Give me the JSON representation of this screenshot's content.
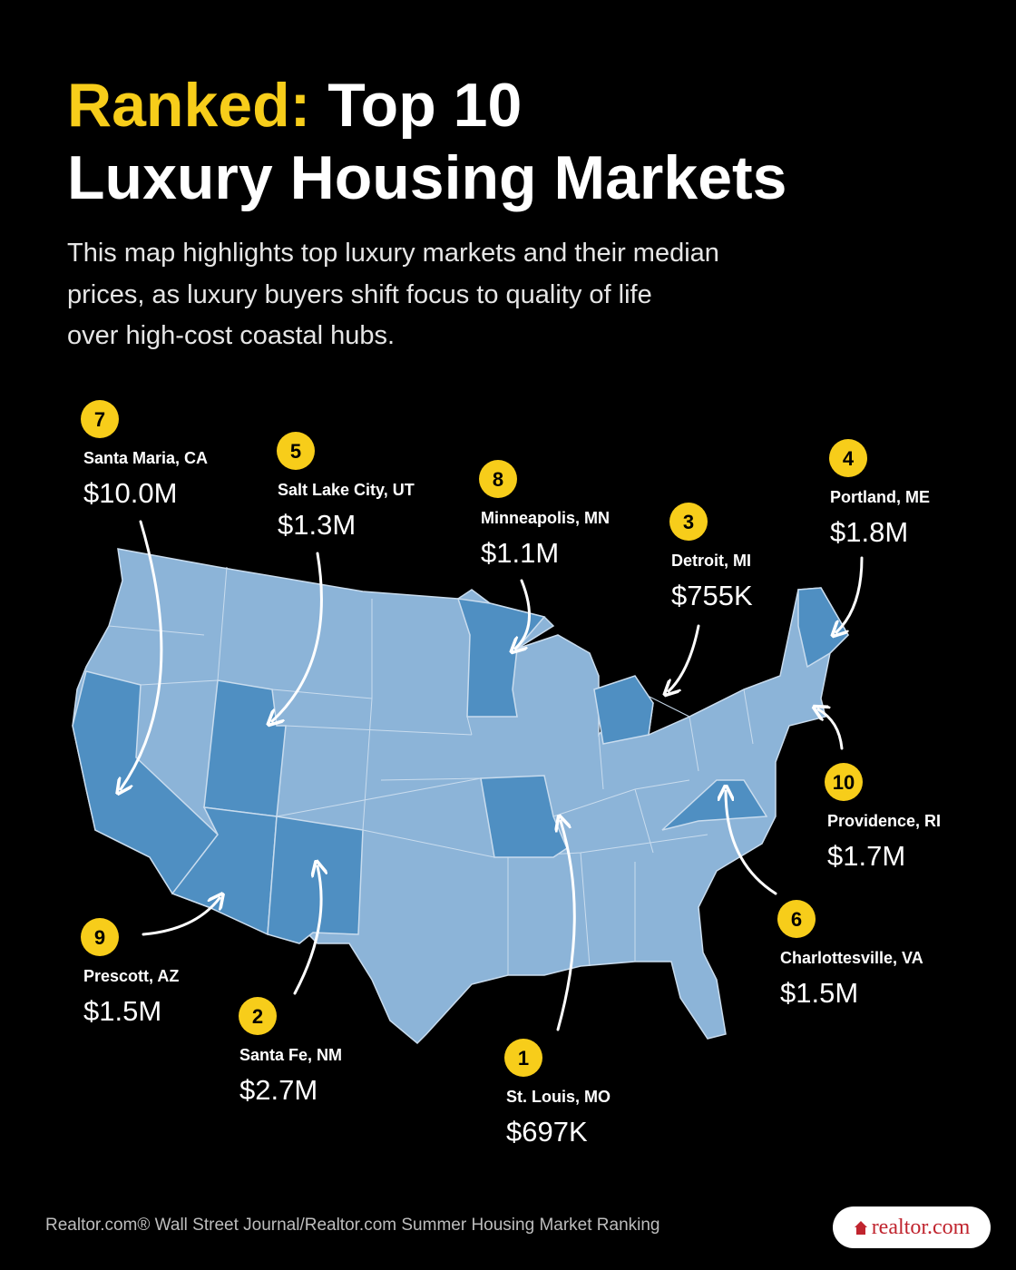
{
  "header": {
    "title_highlight": "Ranked:",
    "title_rest": "Top 10",
    "title_line2": "Luxury Housing Markets",
    "subtitle_lines": [
      "This map highlights top luxury markets and their median",
      "prices, as luxury buyers shift focus to quality of life",
      "over high-cost coastal hubs."
    ]
  },
  "markets": [
    {
      "rank": 1,
      "city": "St. Louis, MO",
      "price": "$697K"
    },
    {
      "rank": 2,
      "city": "Santa Fe, NM",
      "price": "$2.7M"
    },
    {
      "rank": 3,
      "city": "Detroit, MI",
      "price": "$755K"
    },
    {
      "rank": 4,
      "city": "Portland, ME",
      "price": "$1.8M"
    },
    {
      "rank": 5,
      "city": "Salt Lake City, UT",
      "price": "$1.3M"
    },
    {
      "rank": 6,
      "city": "Charlottesville, VA",
      "price": "$1.5M"
    },
    {
      "rank": 7,
      "city": "Santa Maria, CA",
      "price": "$10.0M"
    },
    {
      "rank": 8,
      "city": "Minneapolis, MN",
      "price": "$1.1M"
    },
    {
      "rank": 9,
      "city": "Prescott, AZ",
      "price": "$1.5M"
    },
    {
      "rank": 10,
      "city": "Providence, RI",
      "price": "$1.7M"
    }
  ],
  "footer": {
    "source": "Realtor.com® Wall Street Journal/Realtor.com Summer Housing Market Ranking",
    "logo": "realtor.com"
  }
}
